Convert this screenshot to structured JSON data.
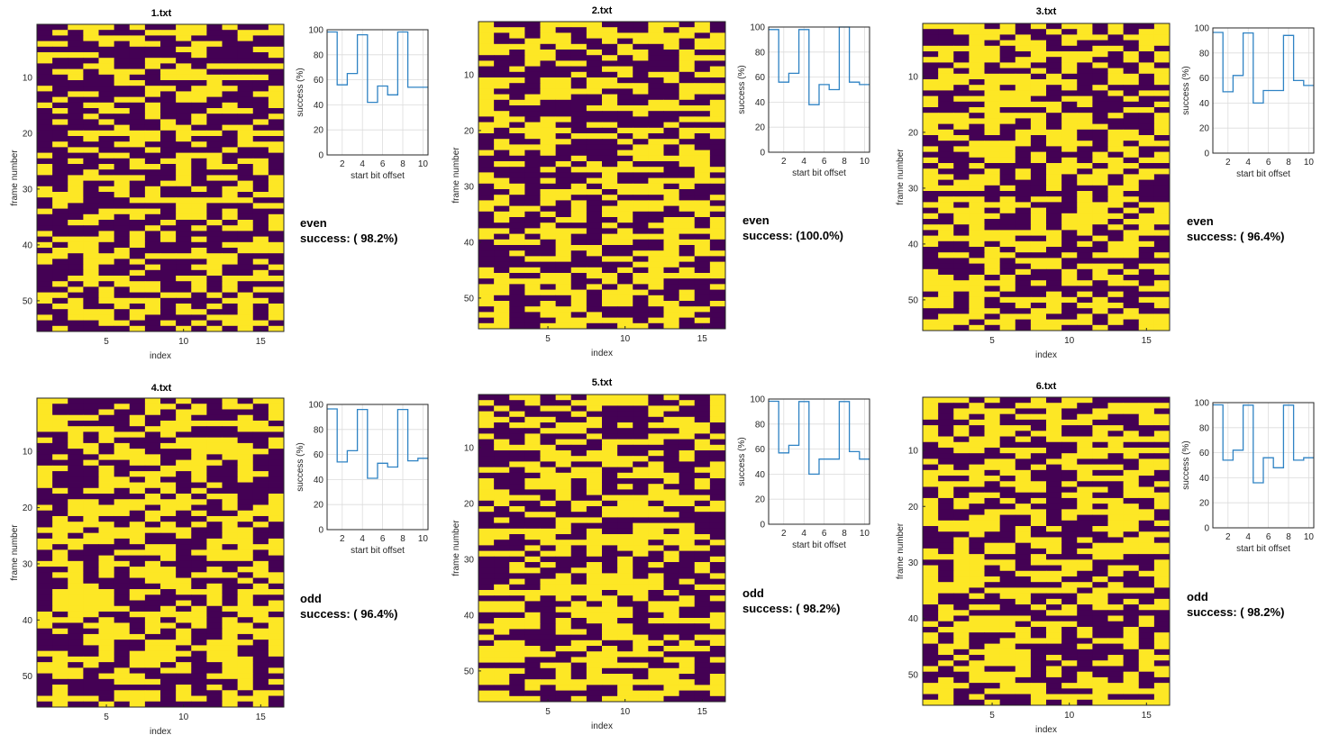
{
  "colors": {
    "low": "#440154",
    "high": "#fde725",
    "line": "#2f83c4"
  },
  "chart_data": [
    {
      "id": "p1",
      "title": "1.txt",
      "parity": "even",
      "success_text": "success: ( 98.2%)",
      "heatmap": {
        "type": "heatmap",
        "xlabel": "index",
        "ylabel": "frame number",
        "xticks": [
          5,
          10,
          15
        ],
        "yticks": [
          10,
          20,
          30,
          40,
          50
        ],
        "cols": 16,
        "rows": 55,
        "rows_bits": [
          "0011101001101001",
          "0101000111100111",
          "0001111001000100",
          "1100101100110000",
          "0000000001100011",
          "1111000000100001",
          "1000100110000000",
          "0001100101011111",
          "0110111011100000",
          "0010010011111110",
          "0000011000010000",
          "1000000110111001",
          "0011000101110011",
          "0100011001100001",
          "1001100100001001",
          "0100110100011100",
          "0001000100100001",
          "0100100010100010",
          "0000010011001100",
          "0011111101110111",
          "0001001101000100",
          "0100011000100111",
          "0011000100001001",
          "1000110001110000",
          "0010001011010110",
          "1000101101011010",
          "1001000001000010",
          "0011111001011001",
          "0010010011000101",
          "1010110100101101",
          "1110010100001011",
          "0110001111111100",
          "0100000001100011",
          "1000111101101000",
          "0001101001101001",
          "0011000010010101",
          "0000000100101101",
          "1000101010000000",
          "0111101010100010",
          "1011001000001111",
          "0111010000100111",
          "1101110111111000",
          "1001101000011010",
          "0001000100110001",
          "0001001000010010",
          "0011110001101111",
          "0101011100101000",
          "0010101100101011",
          "1100100011010100",
          "1010111100001110",
          "0110010101010101",
          "0011101101100101",
          "1011101000011101",
          "0000110010101110",
          "0100001001010101"
        ]
      },
      "success_curve": {
        "type": "line",
        "xlabel": "start bit offset",
        "ylabel": "success (%)",
        "xticks": [
          2,
          4,
          6,
          8,
          10
        ],
        "yticks": [
          0,
          20,
          40,
          60,
          80,
          100
        ],
        "x": [
          1,
          2,
          3,
          4,
          5,
          6,
          7,
          8,
          9,
          10
        ],
        "values": [
          98.2,
          56,
          65,
          96,
          42,
          55,
          48,
          98.2,
          54,
          54
        ]
      }
    },
    {
      "id": "p2",
      "title": "2.txt",
      "parity": "even",
      "success_text": "success: (100.0%)",
      "heatmap": {
        "type": "heatmap",
        "xlabel": "index",
        "ylabel": "frame number",
        "xticks": [
          5,
          10,
          15
        ],
        "yticks": [
          10,
          20,
          30,
          40,
          50
        ],
        "cols": 16,
        "rows": 55,
        "rows_bits": [
          "1000111100011010",
          "1110100110010110",
          "1010110111111101",
          "1001110010111011",
          "1111011001001011",
          "1101100101100100",
          "0001100010100111",
          "1001011000000100",
          "0010000011000101",
          "0000001001011011",
          "1110110110001000",
          "1100110111100111",
          "1000111100100111",
          "1101110010000100",
          "1011000010011001",
          "1000000111111111",
          "1100000000100001",
          "0110110000000111",
          "1101100110001000",
          "1011110001110111",
          "0001101110100101",
          "0100110001011000",
          "0111100000110100",
          "1010100001110110",
          "0000001000111110",
          "0110010101000110",
          "0000101111110011",
          "1000000010000010",
          "1100100110011111",
          "0110001011110100",
          "0010111101111000",
          "0100110010001001",
          "1100101001111110",
          "1011001011110111",
          "0110101011000010",
          "0100011001001101",
          "0000100010011101",
          "1101111001001111",
          "1010110011111001",
          "0111010011001110",
          "0000011100001010",
          "0010010100111011",
          "0001110011011100",
          "0000000000111001",
          "1011001101010101",
          "1100110110111111",
          "0111110010110000",
          "1101010101010001",
          "1101111011100100",
          "1000001011010100",
          "1100101011011001",
          "0101111000001110",
          "1100110100001100",
          "0100011111011010",
          "1100111001101000"
        ]
      },
      "success_curve": {
        "type": "line",
        "xlabel": "start bit offset",
        "ylabel": "success (%)",
        "xticks": [
          2,
          4,
          6,
          8,
          10
        ],
        "yticks": [
          0,
          20,
          40,
          60,
          80,
          100
        ],
        "x": [
          1,
          2,
          3,
          4,
          5,
          6,
          7,
          8,
          9,
          10
        ],
        "values": [
          98,
          56,
          63,
          98,
          38,
          54,
          50,
          100,
          56,
          54
        ]
      }
    },
    {
      "id": "p3",
      "title": "3.txt",
      "parity": "even",
      "success_text": "success: ( 96.4%)",
      "heatmap": {
        "type": "heatmap",
        "xlabel": "index",
        "ylabel": "frame number",
        "xticks": [
          5,
          10,
          15
        ],
        "yticks": [
          10,
          20,
          30,
          40,
          50
        ],
        "cols": 16,
        "rows": 55,
        "rows_bits": [
          "1111010101101001",
          "0011110010101011",
          "0001101001110111",
          "0001011101000011",
          "1111101100011010",
          "0101100111110101",
          "1101101101100101",
          "0011011001010010",
          "0101000101001011",
          "0111111010001101",
          "1110111111001101",
          "1101101101010000",
          "0000111100001011",
          "1011111001100100",
          "1000111110100001",
          "0001100010000110",
          "1110111101101001",
          "1111110101100001",
          "1010100101110001",
          "1100101111001101",
          "0110001011001110",
          "0001111011101011",
          "1011110001001100",
          "0001110100010101",
          "1000110101011011",
          "0101000011101100",
          "1000101011011011",
          "1101101010110110",
          "1011100010110100",
          "1111010010001100",
          "0000000000101000",
          "0111010110101100",
          "1101111000111011",
          "0111010100110101",
          "1011100101111011",
          "0011000101110111",
          "1101000101101010",
          "0101111110100111",
          "1111110010010100",
          "1001011110101110",
          "0000101100001100",
          "0110110001011101",
          "0001101110000000",
          "0000100110111011",
          "1000101001010101",
          "1101010001011000",
          "1111110101101101",
          "1111010000000011",
          "0101100010101000",
          "1101011111010011",
          "1101001010111001",
          "0001100110010100",
          "0111011100101111",
          "1110110111101011",
          "1101010110010011"
        ]
      },
      "success_curve": {
        "type": "line",
        "xlabel": "start bit offset",
        "ylabel": "success (%)",
        "xticks": [
          2,
          4,
          6,
          8,
          10
        ],
        "yticks": [
          0,
          20,
          40,
          60,
          80,
          100
        ],
        "x": [
          1,
          2,
          3,
          4,
          5,
          6,
          7,
          8,
          9,
          10
        ],
        "values": [
          96.4,
          49,
          62,
          96,
          40,
          50,
          50,
          94,
          58,
          54
        ]
      }
    },
    {
      "id": "p4",
      "title": "4.txt",
      "parity": "odd",
      "success_text": "success: ( 96.4%)",
      "heatmap": {
        "type": "heatmap",
        "xlabel": "index",
        "ylabel": "frame number",
        "xticks": [
          5,
          10,
          15
        ],
        "yticks": [
          10,
          20,
          30,
          40,
          50
        ],
        "cols": 16,
        "rows": 55,
        "rows_bits": [
          "1100000101001011",
          "1000010110101101",
          "1000100101100001",
          "1111001001000101",
          "1100001011111110",
          "1111100111000111",
          "0010111010000000",
          "1010100001111001",
          "0011010011111101",
          "0001011000111110",
          "0100111100101100",
          "0001001101110100",
          "1100100011100100",
          "1000101110100110",
          "1000110100100100",
          "1000111110010000",
          "0101101010100000",
          "0000000101011001",
          "0011011111101001",
          "1011111011001011",
          "0011110110100111",
          "0101000100011101",
          "0111101010101010",
          "1110111111001100",
          "0101111001001100",
          "1111101000011101",
          "1010000110010111",
          "0100011110111101",
          "0100100010011100",
          "1110110100000010",
          "0010101110010110",
          "0110101110111011",
          "0010000111000101",
          "0011000011010010",
          "0111101101110111",
          "0111101000010100",
          "0111100001010101",
          "0111110010101111",
          "1011001111100110",
          "1110100101101011",
          "1001110110101101",
          "0100110101001111",
          "0001111001001011",
          "0001100111011101",
          "0000100110111001",
          "1100101111011001",
          "0111101110011100",
          "1101001101001100",
          "1110010011001101",
          "0110111000011100",
          "0000011100000101",
          "0100000001010100",
          "0100011101001011",
          "1111011101101110",
          "0100101000001010"
        ]
      },
      "success_curve": {
        "type": "line",
        "xlabel": "start bit offset",
        "ylabel": "success (%)",
        "xticks": [
          2,
          4,
          6,
          8,
          10
        ],
        "yticks": [
          0,
          20,
          40,
          60,
          80,
          100
        ],
        "x": [
          1,
          2,
          3,
          4,
          5,
          6,
          7,
          8,
          9,
          10
        ],
        "values": [
          96.4,
          54,
          63,
          96,
          41,
          53,
          50,
          96,
          55,
          57
        ]
      }
    },
    {
      "id": "p5",
      "title": "5.txt",
      "parity": "odd",
      "success_text": "success: ( 98.2%)",
      "heatmap": {
        "type": "heatmap",
        "xlabel": "index",
        "ylabel": "frame number",
        "xticks": [
          5,
          10,
          15
        ],
        "yticks": [
          10,
          20,
          30,
          40,
          50
        ],
        "cols": 16,
        "rows": 55,
        "rows_bits": [
          "0011010111101001",
          "1001001111100101",
          "0100110100011001",
          "1010001000010001",
          "1101100100001101",
          "1011011101011110",
          "0000111000000110",
          "1001000100011101",
          "0101011011110010",
          "0111100010000011",
          "0000110110010100",
          "0000111111100100",
          "0011010011010001",
          "1101101100110011",
          "0000111101111001",
          "1001110100001010",
          "1001110101010010",
          "1100010100011000",
          "1111010011111110",
          "0100101101101101",
          "1010001011110011",
          "0001100011111000",
          "0100011100000000",
          "0000010000111100",
          "1111110100110100",
          "1101100111111110",
          "1000111111101101",
          "0001010101110110",
          "1110110100101000",
          "0001000001001001",
          "0010100101010010",
          "0011001101000010",
          "0000010111010001",
          "0010110111110100",
          "0100111111110011",
          "1111111101101000",
          "0001010110100101",
          "1110001010011100",
          "1110011111011000",
          "0001001111001001",
          "0111010110011111",
          "1111010011000001",
          "0100011011000000",
          "1000000011101011",
          "0110001100110101",
          "1111011010101110",
          "1111100111110000",
          "1110001110001101",
          "0000110111100100",
          "1110010100011100",
          "1100010111011001",
          "1101111111111101",
          "0001011001001111",
          "1100000001111001",
          "1111001011110000"
        ]
      },
      "success_curve": {
        "type": "line",
        "xlabel": "start bit offset",
        "ylabel": "success (%)",
        "xticks": [
          2,
          4,
          6,
          8,
          10
        ],
        "yticks": [
          0,
          20,
          40,
          60,
          80,
          100
        ],
        "x": [
          1,
          2,
          3,
          4,
          5,
          6,
          7,
          8,
          9,
          10
        ],
        "values": [
          98.2,
          57,
          63,
          98,
          40,
          52,
          52,
          98,
          58,
          52
        ]
      }
    },
    {
      "id": "p6",
      "title": "6.txt",
      "parity": "odd",
      "success_text": "success: ( 98.2%)",
      "heatmap": {
        "type": "heatmap",
        "xlabel": "index",
        "ylabel": "frame number",
        "xticks": [
          5,
          10,
          15
        ],
        "yticks": [
          10,
          20,
          30,
          40,
          50
        ],
        "cols": 16,
        "rows": 55,
        "rows_bits": [
          "1110100101100000",
          "1001001111001111",
          "1011110010011110",
          "1010101110110011",
          "0001100011100011",
          "1010111010011000",
          "1010110110010101",
          "1101101011111111",
          "0111100000101000",
          "0011011100111111",
          "0000001001110100",
          "1000110011000011",
          "0101110101111011",
          "1111011000100110",
          "1001101000111100",
          "1111011101000101",
          "0100001100110110",
          "0101100001100111",
          "1011010100111001",
          "1010001000101101",
          "1000111101111110",
          "1001100101001110",
          "1111100100001101",
          "0111101010011100",
          "0001001000001011",
          "0010001110100110",
          "0010110110011111",
          "1010110010111111",
          "1111000100011000",
          "0011110111100001",
          "1011010001101101",
          "1011001111001011",
          "1011100110010001",
          "1111000001101001",
          "1110111111011110",
          "1001011000110000",
          "1000001010110101",
          "0101100101011011",
          "0110000011000000",
          "0101111000001010",
          "1011110111000010",
          "0111111010100100",
          "1010001010100101",
          "1010011110011101",
          "0110110000100101",
          "0101111000000010",
          "0010111010001011",
          "0101111001011010",
          "1011001010000011",
          "0001111010100101",
          "0101110000110100",
          "1110011101111101",
          "1100111100011111",
          "0101000111110001",
          "1100100101011111"
        ]
      },
      "success_curve": {
        "type": "line",
        "xlabel": "start bit offset",
        "ylabel": "success (%)",
        "xticks": [
          2,
          4,
          6,
          8,
          10
        ],
        "yticks": [
          0,
          20,
          40,
          60,
          80,
          100
        ],
        "x": [
          1,
          2,
          3,
          4,
          5,
          6,
          7,
          8,
          9,
          10
        ],
        "values": [
          98.2,
          54,
          62,
          98,
          36,
          56,
          48,
          98,
          54,
          56
        ]
      }
    }
  ]
}
